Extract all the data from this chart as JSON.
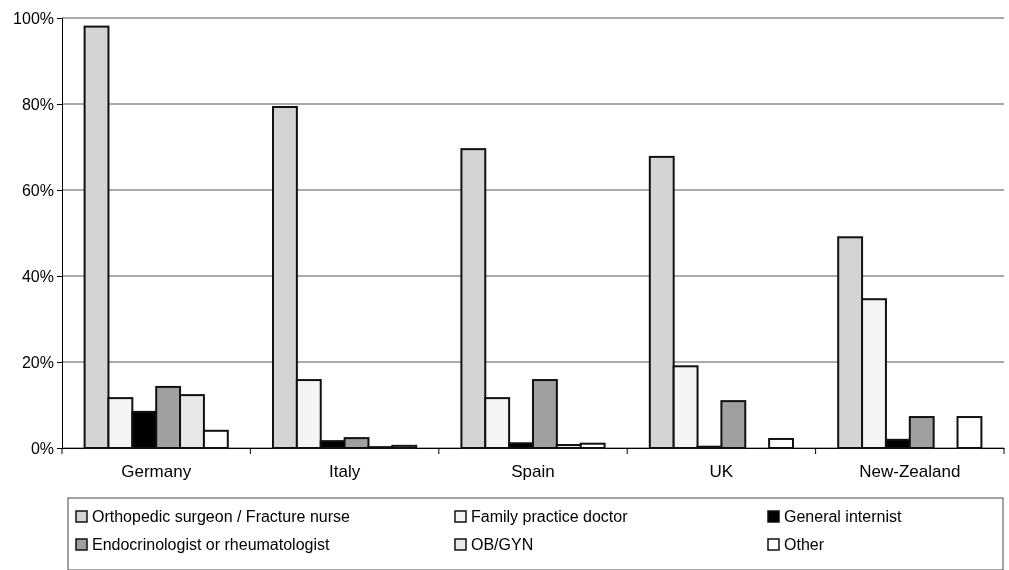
{
  "chart_data": {
    "type": "bar",
    "categories": [
      "Germany",
      "Italy",
      "Spain",
      "UK",
      "New-Zealand"
    ],
    "series": [
      {
        "name": "Orthopedic surgeon / Fracture nurse",
        "color": "#d4d4d4",
        "values": [
          98,
          79.3,
          69.5,
          67.7,
          49
        ]
      },
      {
        "name": "Family practice doctor",
        "color": "#f4f4f4",
        "values": [
          11.6,
          15.8,
          11.6,
          19,
          34.6
        ]
      },
      {
        "name": "General internist",
        "color": "#000000",
        "values": [
          8.4,
          1.6,
          1.1,
          0.3,
          1.9
        ]
      },
      {
        "name": "Endocrinologist or rheumatologist",
        "color": "#a0a0a0",
        "values": [
          14.2,
          2.3,
          15.8,
          10.9,
          7.2
        ]
      },
      {
        "name": "OB/GYN",
        "color": "#e8e8e8",
        "values": [
          12.3,
          0.2,
          0.7,
          0,
          0
        ]
      },
      {
        "name": "Other",
        "color": "#ffffff",
        "values": [
          4,
          0.5,
          1,
          2.1,
          7.2
        ]
      }
    ],
    "ylim": [
      0,
      100
    ],
    "yticks": [
      {
        "value": 0,
        "label": "0%"
      },
      {
        "value": 20,
        "label": "20%"
      },
      {
        "value": 40,
        "label": "40%"
      },
      {
        "value": 60,
        "label": "60%"
      },
      {
        "value": 80,
        "label": "80%"
      },
      {
        "value": 100,
        "label": "100%"
      }
    ],
    "grid": "y",
    "legend": "bottom"
  }
}
